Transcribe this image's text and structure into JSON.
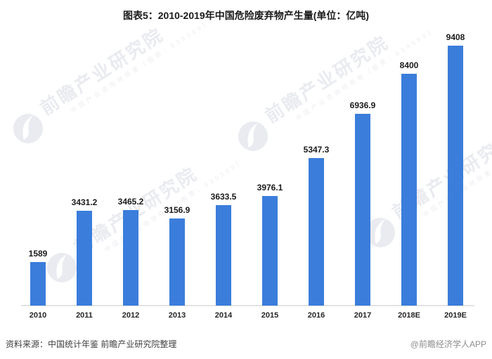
{
  "title": "图表5：2010-2019年中国危险废弃物产生量(单位：亿吨)",
  "watermark": {
    "logo": "qianzhan-logo",
    "text": "前瞻产业研究院",
    "subtext": "中国产业咨询领导者（股票：839599）"
  },
  "footer": {
    "source": "资料来源：中国统计年鉴 前瞻产业研究院整理",
    "credit": "@前瞻经济学人APP"
  },
  "colors": {
    "bar": "#3b7ddb",
    "axis_line": "#e3e3e3",
    "title_text": "#1a1a1a",
    "watermark_text": "#e9ebf0"
  },
  "chart_data": {
    "type": "bar",
    "categories": [
      "2010",
      "2011",
      "2012",
      "2013",
      "2014",
      "2015",
      "2016",
      "2017",
      "2018E",
      "2019E"
    ],
    "values": [
      1589,
      3431.2,
      3465.2,
      3156.9,
      3633.5,
      3976.1,
      5347.3,
      6936.9,
      8400,
      9408
    ],
    "title": "图表5：2010-2019年中国危险废弃物产生量(单位：亿吨)",
    "xlabel": "",
    "ylabel": "",
    "unit": "亿吨",
    "bar_color": "#3b7ddb",
    "value_labels": true,
    "y_axis_visible": false,
    "grid": false,
    "legend": null
  }
}
